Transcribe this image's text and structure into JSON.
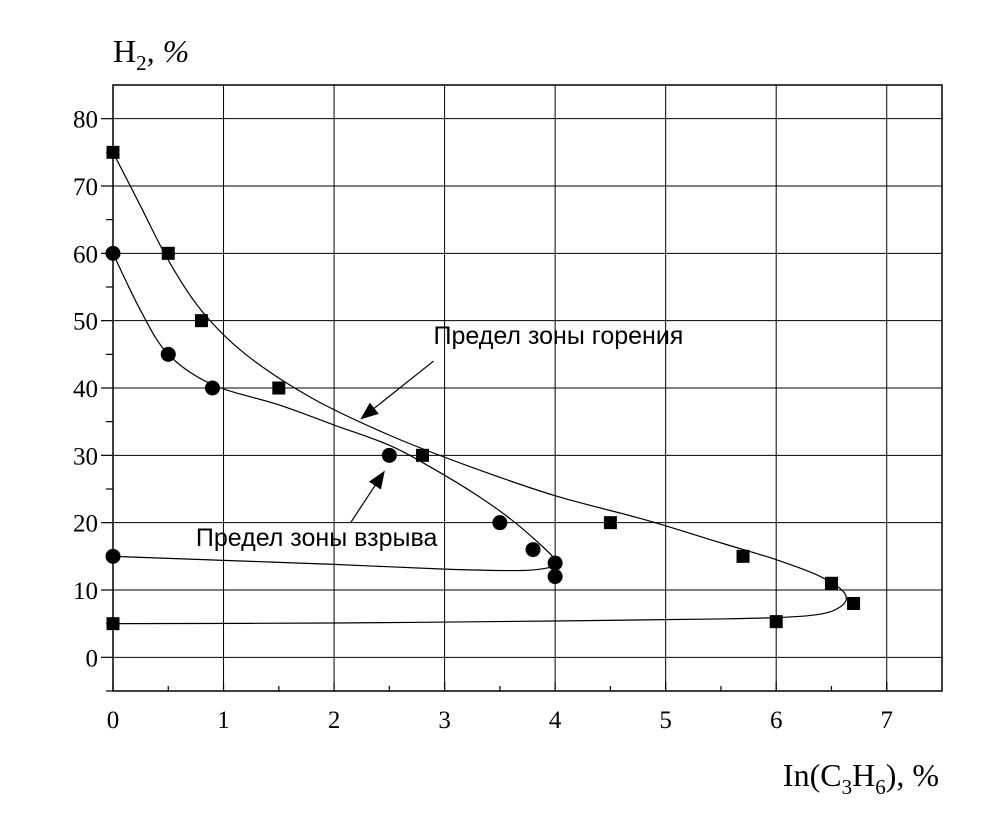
{
  "chart_data": {
    "type": "scatter",
    "x_axis": {
      "label_prefix": "In(C",
      "label_sub1": "3",
      "label_mid": "H",
      "label_sub2": "6",
      "label_suffix": "), %",
      "range": [
        0,
        7.5
      ],
      "ticks": [
        "0",
        "1",
        "2",
        "3",
        "4",
        "5",
        "6",
        "7"
      ],
      "tick_values": [
        0,
        1,
        2,
        3,
        4,
        5,
        6,
        7
      ]
    },
    "y_axis": {
      "label_prefix": "H",
      "label_sub": "2",
      "label_suffix": ", %",
      "range": [
        -5,
        85
      ],
      "ticks": [
        "0",
        "10",
        "20",
        "30",
        "40",
        "50",
        "60",
        "70",
        "80"
      ],
      "tick_values": [
        0,
        10,
        20,
        30,
        40,
        50,
        60,
        70,
        80
      ]
    },
    "grid": true,
    "series": [
      {
        "marker": "square",
        "x": [
          0,
          0.5,
          0.8,
          1.5,
          2.8,
          4.5,
          5.7,
          6.5,
          6.7,
          6.0,
          0
        ],
        "y": [
          75,
          60,
          50,
          40,
          30,
          20,
          15,
          11,
          8,
          5.3,
          5
        ]
      },
      {
        "marker": "circle",
        "x": [
          0,
          0.5,
          0.9,
          2.5,
          3.5,
          3.8,
          4.0,
          4.0,
          0
        ],
        "y": [
          60,
          45,
          40,
          30,
          20,
          16,
          14,
          12,
          15
        ]
      }
    ],
    "curves": [
      {
        "x": [
          0,
          0.25,
          0.5,
          0.8,
          1.2,
          1.8,
          2.5,
          3.2,
          4.0,
          4.8,
          5.5,
          6.0,
          6.4,
          6.62,
          6.58,
          6.3,
          5.5,
          4.0,
          2.0,
          0
        ],
        "y": [
          75,
          67,
          59,
          51.5,
          45,
          38.5,
          33,
          28.5,
          24,
          20.5,
          17,
          14.5,
          12,
          9.5,
          7.5,
          6.2,
          5.7,
          5.4,
          5.1,
          5
        ]
      },
      {
        "x": [
          0,
          0.25,
          0.5,
          0.9,
          1.5,
          2.0,
          2.5,
          2.9,
          3.3,
          3.6,
          3.85,
          4.0,
          3.98,
          3.7,
          3.0,
          2.0,
          1.0,
          0
        ],
        "y": [
          60,
          51.5,
          45,
          40.5,
          37.5,
          34.5,
          31.5,
          28,
          24,
          20.5,
          17,
          14.5,
          13.5,
          12.9,
          13.1,
          13.8,
          14.4,
          15
        ]
      }
    ],
    "annotations": [
      {
        "text": "Предел зоны горения",
        "x": 2.9,
        "y": 46.5,
        "arrow_from": [
          2.9,
          44
        ],
        "arrow_to": [
          2.25,
          35.5
        ]
      },
      {
        "text": "Предел зоны взрыва",
        "x": 0.75,
        "y": 16.5,
        "arrow_from": [
          2.15,
          20
        ],
        "arrow_to": [
          2.45,
          27.5
        ]
      }
    ]
  }
}
